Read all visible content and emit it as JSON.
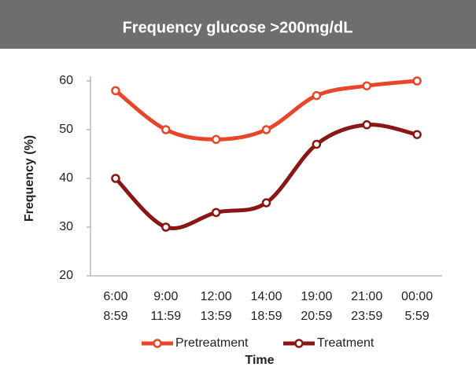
{
  "chart_data": {
    "type": "line",
    "title": "Frequency glucose >200mg/dL",
    "x_label": "Time",
    "y_label": "Frequency (%)",
    "categories": [
      [
        "6:00",
        "8:59"
      ],
      [
        "9:00",
        "11:59"
      ],
      [
        "12:00",
        "13:59"
      ],
      [
        "14:00",
        "18:59"
      ],
      [
        "19:00",
        "20:59"
      ],
      [
        "21:00",
        "23:59"
      ],
      [
        "00:00",
        "5:59"
      ]
    ],
    "series": [
      {
        "name": "Pretreatment",
        "color": "#e8452a",
        "values": [
          58,
          50,
          48,
          50,
          57,
          59,
          60
        ]
      },
      {
        "name": "Treatment",
        "color": "#8b1616",
        "values": [
          40,
          30,
          33,
          35,
          47,
          51,
          49
        ]
      }
    ],
    "ylim": [
      20,
      60
    ],
    "yticks": [
      20,
      30,
      40,
      50,
      60
    ],
    "grid": false,
    "legend": "bottom"
  }
}
